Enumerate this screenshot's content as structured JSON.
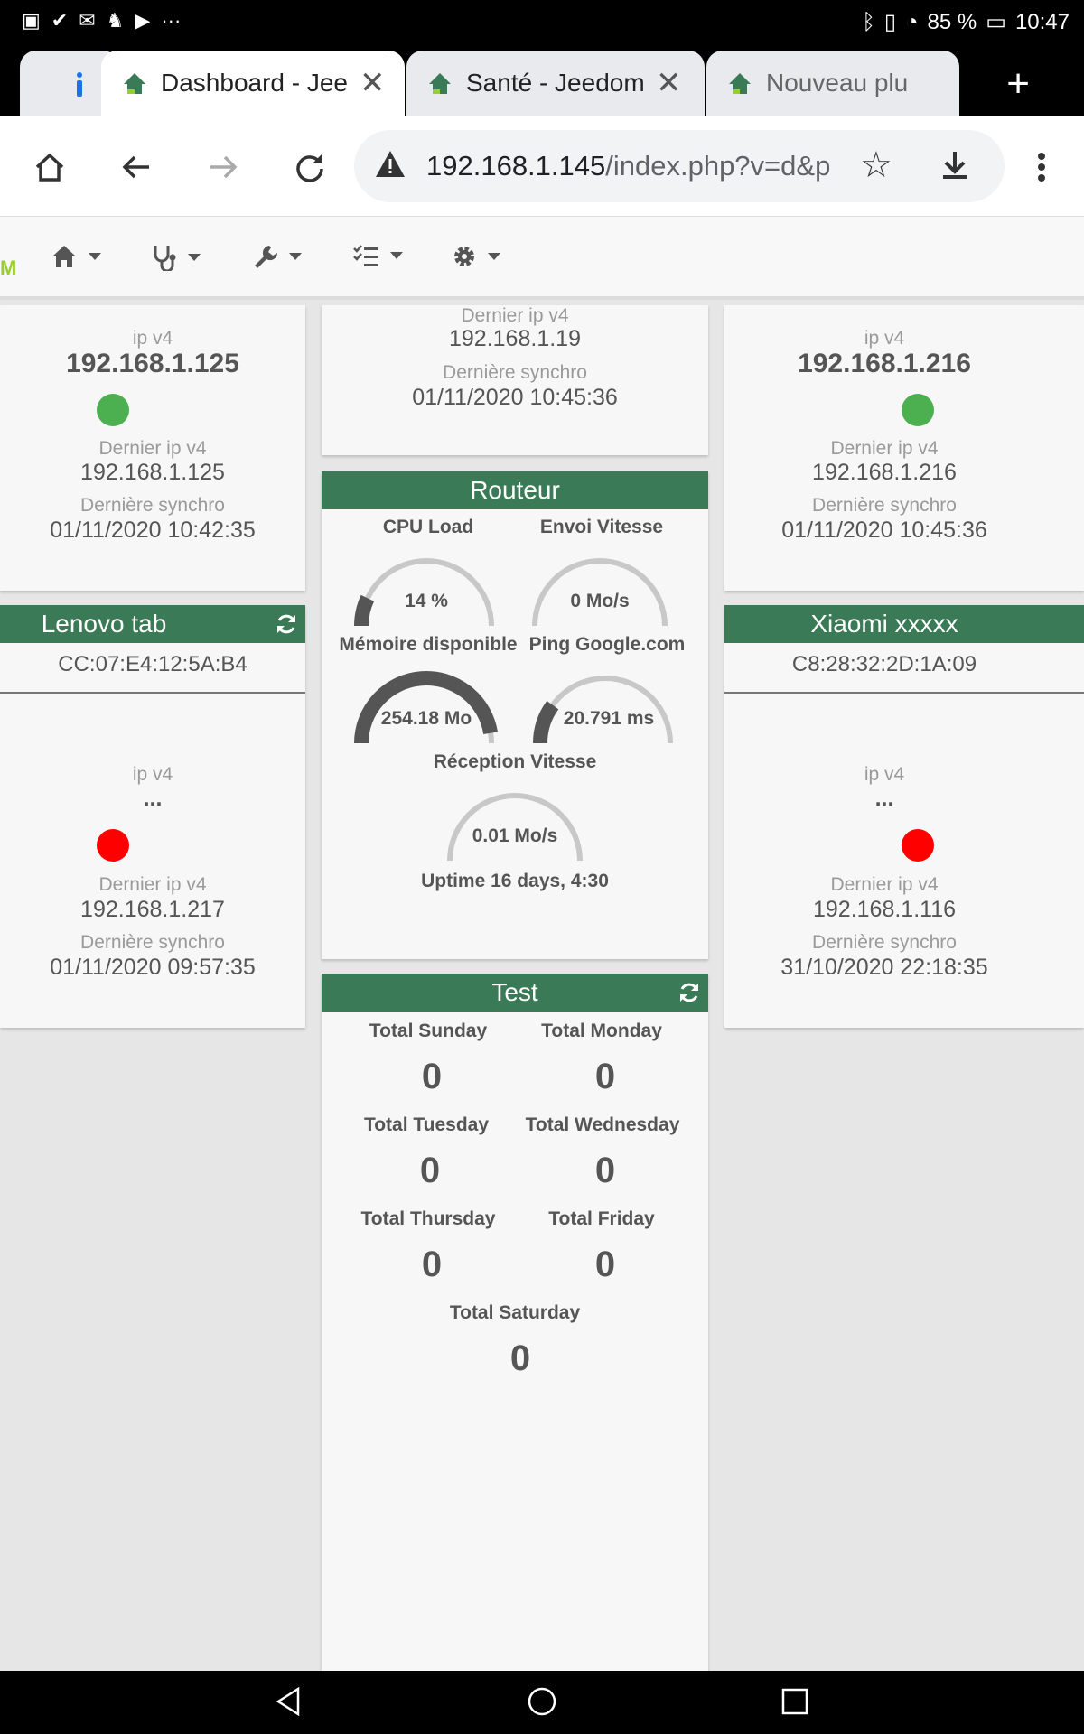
{
  "status": {
    "battery": "85 %",
    "time": "10:47"
  },
  "tabs": [
    {
      "title": "Dashboard - Jee",
      "active": true
    },
    {
      "title": "Santé - Jeedom",
      "active": false
    },
    {
      "title": "Nouveau plu",
      "active": false
    }
  ],
  "address": {
    "host": "192.168.1.145",
    "path": "/index.php?v=d&p"
  },
  "nav": {
    "logo_letter": "M"
  },
  "left_top": {
    "ip_label": "ip v4",
    "ip": "192.168.1.125",
    "last_ip_label": "Dernier ip v4",
    "last_ip": "192.168.1.125",
    "sync_label": "Dernière synchro",
    "sync": "01/11/2020 10:42:35"
  },
  "left_bottom": {
    "name": "Lenovo tab",
    "mac": "CC:07:E4:12:5A:B4",
    "ip_label": "ip v4",
    "ip": "...",
    "last_ip_label": "Dernier ip v4",
    "last_ip": "192.168.1.217",
    "sync_label": "Dernière synchro",
    "sync": "01/11/2020 09:57:35"
  },
  "center_top": {
    "last_ip_label": "Dernier ip v4",
    "last_ip": "192.168.1.19",
    "sync_label": "Dernière synchro",
    "sync": "01/11/2020 10:45:36"
  },
  "router": {
    "name": "Routeur",
    "cpu_label": "CPU Load",
    "cpu": "14 %",
    "cpu_level": 0.14,
    "send_label": "Envoi Vitesse",
    "send": "0 Mo/s",
    "send_level": 0,
    "mem_label": "Mémoire disponible",
    "mem": "254.18 Mo",
    "mem_level": 0.95,
    "ping_label": "Ping Google.com",
    "ping": "20.791 ms",
    "ping_level": 0.2,
    "recv_label": "Réception Vitesse",
    "recv": "0.01 Mo/s",
    "recv_level": 0,
    "uptime": "Uptime 16 days, 4:30"
  },
  "test": {
    "name": "Test",
    "sunday_label": "Total Sunday",
    "sunday": "0",
    "monday_label": "Total Monday",
    "monday": "0",
    "tuesday_label": "Total Tuesday",
    "tuesday": "0",
    "wednesday_label": "Total Wednesday",
    "wednesday": "0",
    "thursday_label": "Total Thursday",
    "thursday": "0",
    "friday_label": "Total Friday",
    "friday": "0",
    "saturday_label": "Total Saturday",
    "saturday": "0"
  },
  "right_top": {
    "ip_label": "ip v4",
    "ip": "192.168.1.216",
    "last_ip_label": "Dernier ip v4",
    "last_ip": "192.168.1.216",
    "sync_label": "Dernière synchro",
    "sync": "01/11/2020 10:45:36"
  },
  "right_bottom": {
    "name": "Xiaomi xxxxx",
    "mac": "C8:28:32:2D:1A:09",
    "ip_label": "ip v4",
    "ip": "...",
    "last_ip_label": "Dernier ip v4",
    "last_ip": "192.168.1.116",
    "sync_label": "Dernière synchro",
    "sync": "31/10/2020 22:18:35"
  },
  "colors": {
    "header_green": "#3b7a57",
    "online": "#4caf50",
    "offline": "#ff0000"
  }
}
